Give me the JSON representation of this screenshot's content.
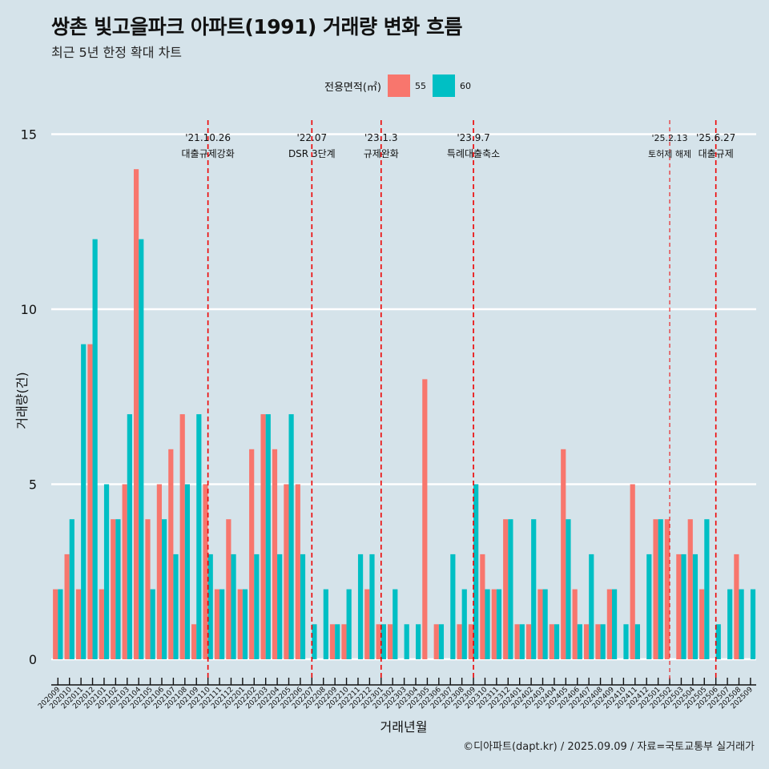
{
  "title": "쌍촌 빛고을파크 아파트(1991) 거래량 변화 흐름",
  "subtitle": "최근 5년 한정 확대 차트",
  "caption": "©디아파트(dapt.kr) / 2025.09.09 / 자료=국토교통부 실거래가",
  "colors": {
    "s55": "#f8766d",
    "s60": "#00bfc4",
    "event": "#ee0000",
    "background": "#d5e3ea",
    "grid": "#ffffff"
  },
  "legend": {
    "title": "전용면적(㎡)",
    "items": [
      {
        "label": "55",
        "color": "#f8766d"
      },
      {
        "label": "60",
        "color": "#00bfc4"
      }
    ]
  },
  "chart_data": {
    "type": "bar",
    "title": "쌍촌 빛고을파크 아파트(1991) 거래량 변화 흐름",
    "xlabel": "거래년월",
    "ylabel": "거래량(건)",
    "ylim": [
      0,
      15
    ],
    "yticks": [
      0,
      5,
      10,
      15
    ],
    "categories": [
      "202009",
      "202010",
      "202011",
      "202012",
      "202101",
      "202102",
      "202103",
      "202104",
      "202105",
      "202106",
      "202107",
      "202108",
      "202109",
      "202110",
      "202111",
      "202112",
      "202201",
      "202202",
      "202203",
      "202204",
      "202205",
      "202206",
      "202207",
      "202208",
      "202209",
      "202210",
      "202211",
      "202212",
      "202301",
      "202302",
      "202303",
      "202304",
      "202305",
      "202306",
      "202307",
      "202308",
      "202309",
      "202310",
      "202311",
      "202312",
      "202401",
      "202402",
      "202403",
      "202404",
      "202405",
      "202406",
      "202407",
      "202408",
      "202409",
      "202410",
      "202411",
      "202412",
      "202501",
      "202502",
      "202503",
      "202504",
      "202505",
      "202506",
      "202507",
      "202508",
      "202509"
    ],
    "series": [
      {
        "name": "55",
        "values": [
          2,
          3,
          2,
          9,
          2,
          4,
          5,
          14,
          4,
          5,
          6,
          7,
          1,
          5,
          2,
          4,
          2,
          6,
          7,
          6,
          5,
          5,
          0,
          0,
          1,
          1,
          0,
          2,
          1,
          1,
          0,
          0,
          8,
          1,
          0,
          1,
          1,
          3,
          2,
          4,
          1,
          1,
          2,
          1,
          6,
          2,
          1,
          1,
          2,
          0,
          5,
          0,
          4,
          4,
          3,
          4,
          2,
          0,
          0,
          3,
          0
        ]
      },
      {
        "name": "60",
        "values": [
          2,
          4,
          9,
          12,
          5,
          4,
          7,
          12,
          2,
          4,
          3,
          5,
          7,
          3,
          2,
          3,
          2,
          3,
          7,
          3,
          7,
          3,
          1,
          2,
          1,
          2,
          3,
          3,
          1,
          2,
          1,
          1,
          0,
          1,
          3,
          2,
          5,
          2,
          2,
          4,
          1,
          4,
          2,
          1,
          4,
          1,
          3,
          1,
          2,
          1,
          1,
          3,
          4,
          0,
          3,
          3,
          4,
          1,
          2,
          2,
          2
        ]
      }
    ],
    "events": [
      {
        "date": "'21.10.26",
        "label": "대출규제강화",
        "month": "202110",
        "style": "dashed"
      },
      {
        "date": "'22.07",
        "label": "DSR 3단계",
        "month": "202207",
        "style": "dashed"
      },
      {
        "date": "'23.1.3",
        "label": "규제완화",
        "month": "202301",
        "style": "dashed"
      },
      {
        "date": "'23.9.7",
        "label": "특례대출축소",
        "month": "202309",
        "style": "dashed"
      },
      {
        "date": "'25.2.13",
        "label": "토허제 해제",
        "month": "202502",
        "style": "thin"
      },
      {
        "date": "'25.6.27",
        "label": "대출규제",
        "month": "202506",
        "style": "dashed"
      }
    ]
  }
}
